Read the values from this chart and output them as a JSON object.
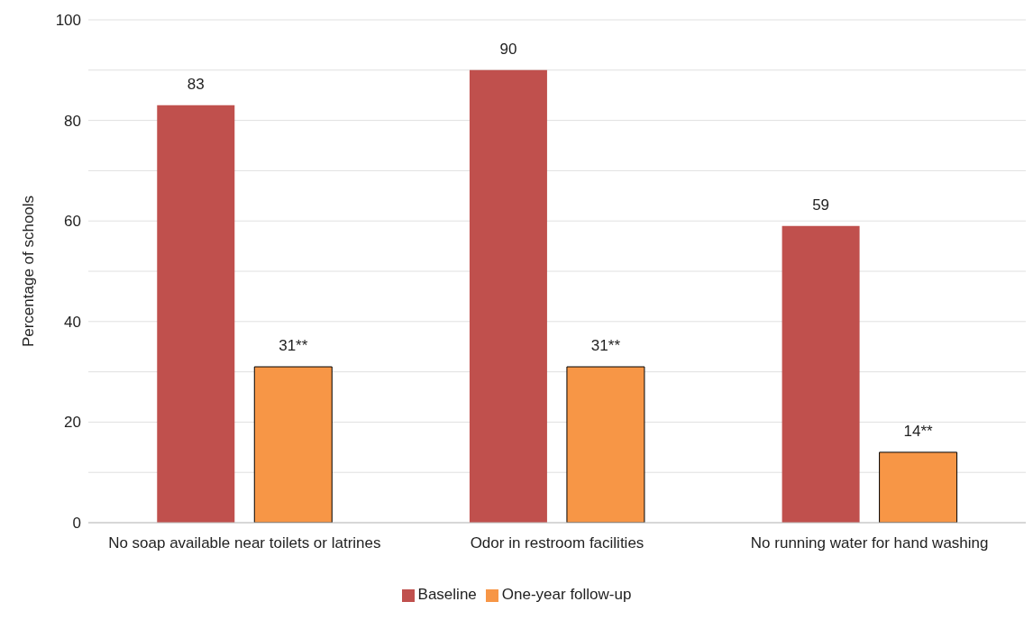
{
  "chart_data": {
    "type": "bar",
    "categories": [
      "No soap available near toilets or latrines",
      "Odor in restroom facilities",
      "No running water for hand washing"
    ],
    "series": [
      {
        "name": "Baseline",
        "color": "#c0504d",
        "values": [
          83,
          90,
          59
        ],
        "value_labels": [
          "83",
          "90",
          "59"
        ]
      },
      {
        "name": "One-year follow-up",
        "color": "#f79646",
        "values": [
          31,
          31,
          14
        ],
        "value_labels": [
          "31**",
          "31**",
          "14**"
        ]
      }
    ],
    "ylabel": "Percentage of schools",
    "ylim": [
      0,
      100
    ],
    "yticks": [
      0,
      {
        "value": 10,
        "label": null
      },
      20,
      {
        "value": 30,
        "label": null
      },
      40,
      {
        "value": 50,
        "label": null
      },
      60,
      {
        "value": 70,
        "label": null
      },
      80,
      {
        "value": 90,
        "label": null
      },
      100
    ],
    "grid": "y",
    "legend": "bottom"
  }
}
